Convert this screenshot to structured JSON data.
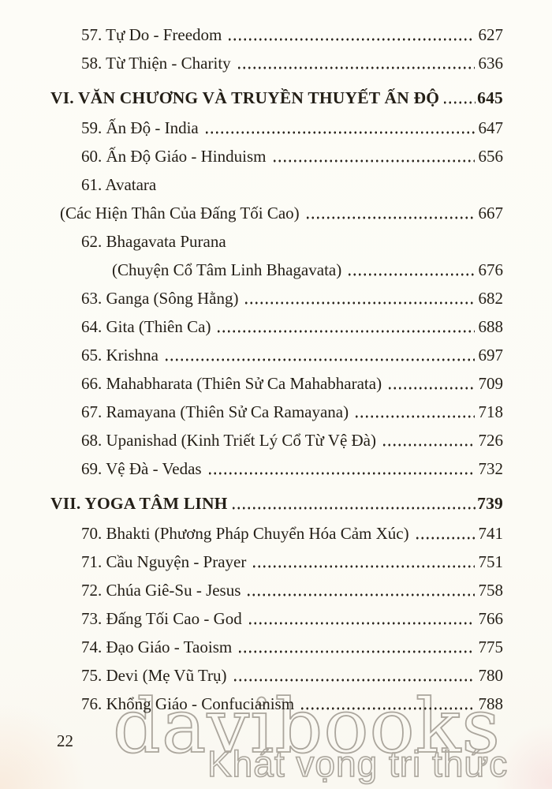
{
  "page": {
    "folio": "22",
    "watermark_line1": "davibooks",
    "watermark_line2": "Khát vọng tri thức"
  },
  "colors": {
    "text": "#241f17",
    "paper": "#fdfcf7",
    "watermark_outline": "#aba69d"
  },
  "toc": {
    "entries": [
      {
        "type": "item",
        "label": "57. Tự Do - Freedom",
        "page": "627"
      },
      {
        "type": "item",
        "label": "58. Từ Thiện - Charity",
        "page": "636"
      },
      {
        "type": "section",
        "label": "VI. VĂN CHƯƠNG VÀ TRUYỀN THUYẾT ẤN ĐỘ",
        "page": "645"
      },
      {
        "type": "item",
        "label": "59. Ấn Độ - India",
        "page": "647"
      },
      {
        "type": "item",
        "label": "60. Ấn Độ Giáo - Hinduism",
        "page": "656"
      },
      {
        "type": "item-nopage",
        "label": "61. Avatara",
        "page": ""
      },
      {
        "type": "cont-outdent",
        "label": "(Các Hiện Thân Của Đấng Tối Cao)",
        "page": "667"
      },
      {
        "type": "item-nopage",
        "label": "62. Bhagavata Purana",
        "page": ""
      },
      {
        "type": "cont-indent",
        "label": "(Chuyện Cổ Tâm Linh Bhagavata)",
        "page": "676"
      },
      {
        "type": "item",
        "label": "63. Ganga (Sông Hằng)",
        "page": "682"
      },
      {
        "type": "item",
        "label": "64. Gita (Thiên Ca)",
        "page": "688"
      },
      {
        "type": "item",
        "label": "65. Krishna",
        "page": "697"
      },
      {
        "type": "item",
        "label": "66. Mahabharata (Thiên Sử Ca Mahabharata)",
        "page": "709"
      },
      {
        "type": "item",
        "label": "67. Ramayana (Thiên Sử Ca Ramayana)",
        "page": "718"
      },
      {
        "type": "item",
        "label": "68. Upanishad (Kinh Triết Lý Cổ Từ Vệ Đà)",
        "page": "726"
      },
      {
        "type": "item",
        "label": "69. Vệ Đà - Vedas",
        "page": "732"
      },
      {
        "type": "section",
        "label": "VII. YOGA TÂM LINH",
        "page": "739"
      },
      {
        "type": "item",
        "label": "70. Bhakti (Phương Pháp Chuyển Hóa Cảm Xúc)",
        "page": "741"
      },
      {
        "type": "item",
        "label": "71. Cầu Nguyện - Prayer",
        "page": "751"
      },
      {
        "type": "item",
        "label": "72. Chúa Giê-Su - Jesus",
        "page": "758"
      },
      {
        "type": "item",
        "label": "73. Đấng Tối Cao - God",
        "page": "766"
      },
      {
        "type": "item",
        "label": "74. Đạo Giáo - Taoism",
        "page": "775"
      },
      {
        "type": "item",
        "label": "75. Devi (Mẹ Vũ Trụ)",
        "page": "780"
      },
      {
        "type": "item",
        "label": "76. Khổng Giáo - Confucianism",
        "page": "788"
      }
    ]
  }
}
